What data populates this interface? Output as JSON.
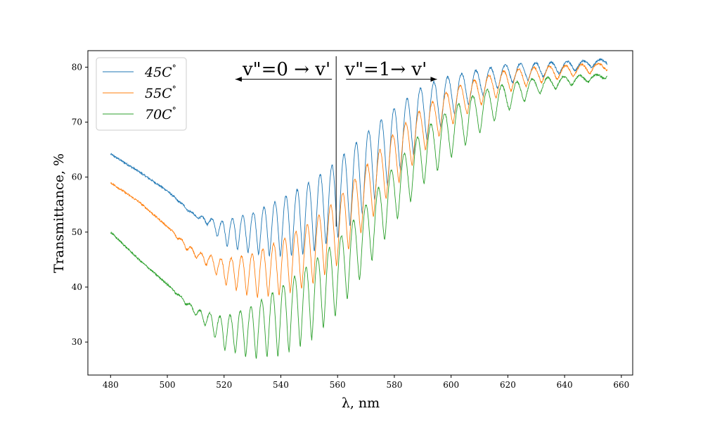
{
  "chart_data": {
    "type": "line",
    "title": "",
    "xlabel": "λ, nm",
    "ylabel": "Transmittance, %",
    "xlim": [
      472,
      664
    ],
    "ylim": [
      24,
      83
    ],
    "xticks": [
      480,
      500,
      520,
      540,
      560,
      580,
      600,
      620,
      640,
      660
    ],
    "yticks": [
      30,
      40,
      50,
      60,
      70,
      80
    ],
    "grid": false,
    "legend_position": "top-left",
    "x_range": [
      480,
      655
    ],
    "series": [
      {
        "name": "45C°",
        "legend_text": "45C",
        "color": "#1f77b4",
        "envelope_upper": [
          [
            480,
            64.2
          ],
          [
            490,
            61
          ],
          [
            500,
            57.5
          ],
          [
            510,
            53
          ],
          [
            520,
            52
          ],
          [
            530,
            53.5
          ],
          [
            540,
            56
          ],
          [
            550,
            59
          ],
          [
            560,
            63
          ],
          [
            570,
            68
          ],
          [
            580,
            72.5
          ],
          [
            590,
            76.5
          ],
          [
            600,
            78.5
          ],
          [
            610,
            79.5
          ],
          [
            620,
            80.5
          ],
          [
            630,
            80.8
          ],
          [
            640,
            81
          ],
          [
            650,
            81.3
          ],
          [
            655,
            81.5
          ]
        ],
        "envelope_lower": [
          [
            480,
            64.2
          ],
          [
            490,
            61
          ],
          [
            500,
            57.5
          ],
          [
            508,
            53.5
          ],
          [
            515,
            51
          ],
          [
            520,
            47.5
          ],
          [
            530,
            46
          ],
          [
            540,
            45.5
          ],
          [
            550,
            46
          ],
          [
            560,
            49
          ],
          [
            570,
            54
          ],
          [
            580,
            60
          ],
          [
            590,
            66
          ],
          [
            600,
            71
          ],
          [
            610,
            74.5
          ],
          [
            620,
            77
          ],
          [
            630,
            78
          ],
          [
            640,
            79
          ],
          [
            650,
            80
          ],
          [
            655,
            80.5
          ]
        ]
      },
      {
        "name": "55C°",
        "legend_text": "55C",
        "color": "#ff7f0e",
        "envelope_upper": [
          [
            480,
            59
          ],
          [
            490,
            55.5
          ],
          [
            500,
            51
          ],
          [
            510,
            46.5
          ],
          [
            520,
            45
          ],
          [
            530,
            46
          ],
          [
            540,
            48.5
          ],
          [
            550,
            51.5
          ],
          [
            560,
            56
          ],
          [
            570,
            62
          ],
          [
            580,
            68
          ],
          [
            590,
            72.5
          ],
          [
            600,
            76
          ],
          [
            610,
            78
          ],
          [
            620,
            79.5
          ],
          [
            630,
            80
          ],
          [
            640,
            80.3
          ],
          [
            650,
            80.6
          ],
          [
            655,
            80.8
          ]
        ],
        "envelope_lower": [
          [
            480,
            59
          ],
          [
            490,
            55.5
          ],
          [
            500,
            51
          ],
          [
            508,
            46
          ],
          [
            515,
            43.5
          ],
          [
            520,
            40.5
          ],
          [
            530,
            38
          ],
          [
            540,
            38.5
          ],
          [
            550,
            40
          ],
          [
            560,
            44
          ],
          [
            570,
            51
          ],
          [
            580,
            58
          ],
          [
            590,
            64.5
          ],
          [
            600,
            69.5
          ],
          [
            610,
            73
          ],
          [
            620,
            75.5
          ],
          [
            630,
            77
          ],
          [
            640,
            78
          ],
          [
            650,
            79
          ],
          [
            655,
            79.5
          ]
        ]
      },
      {
        "name": "70C°",
        "legend_text": "70C",
        "color": "#2ca02c",
        "envelope_upper": [
          [
            480,
            50
          ],
          [
            490,
            45
          ],
          [
            500,
            40.5
          ],
          [
            510,
            36
          ],
          [
            520,
            34.5
          ],
          [
            530,
            36.5
          ],
          [
            540,
            40
          ],
          [
            550,
            44
          ],
          [
            560,
            48.5
          ],
          [
            570,
            55
          ],
          [
            580,
            62
          ],
          [
            590,
            68.5
          ],
          [
            600,
            72.5
          ],
          [
            610,
            75.5
          ],
          [
            620,
            77
          ],
          [
            630,
            78
          ],
          [
            640,
            78.3
          ],
          [
            650,
            78.6
          ],
          [
            655,
            78.8
          ]
        ],
        "envelope_lower": [
          [
            480,
            50
          ],
          [
            490,
            45
          ],
          [
            500,
            40.5
          ],
          [
            508,
            36
          ],
          [
            515,
            32
          ],
          [
            520,
            28.5
          ],
          [
            530,
            27
          ],
          [
            540,
            27.5
          ],
          [
            550,
            30
          ],
          [
            560,
            35
          ],
          [
            570,
            43
          ],
          [
            580,
            51.5
          ],
          [
            590,
            58.5
          ],
          [
            600,
            63.5
          ],
          [
            610,
            68
          ],
          [
            620,
            72
          ],
          [
            630,
            75
          ],
          [
            640,
            76.5
          ],
          [
            650,
            77.5
          ],
          [
            655,
            78
          ]
        ]
      }
    ],
    "annotations": [
      {
        "text": "v\"=0 → v'",
        "x": 542,
        "y": 79.7,
        "arrow_from": 558,
        "arrow_to": 524,
        "arrow_y": 77.8
      },
      {
        "text": "v\"=1→ v'",
        "x": 577,
        "y": 79.7,
        "arrow_from": 563,
        "arrow_to": 595,
        "arrow_y": 77.8
      }
    ],
    "vertical_line": {
      "x": 559.5,
      "y_from": 51,
      "y_to": 82
    }
  }
}
